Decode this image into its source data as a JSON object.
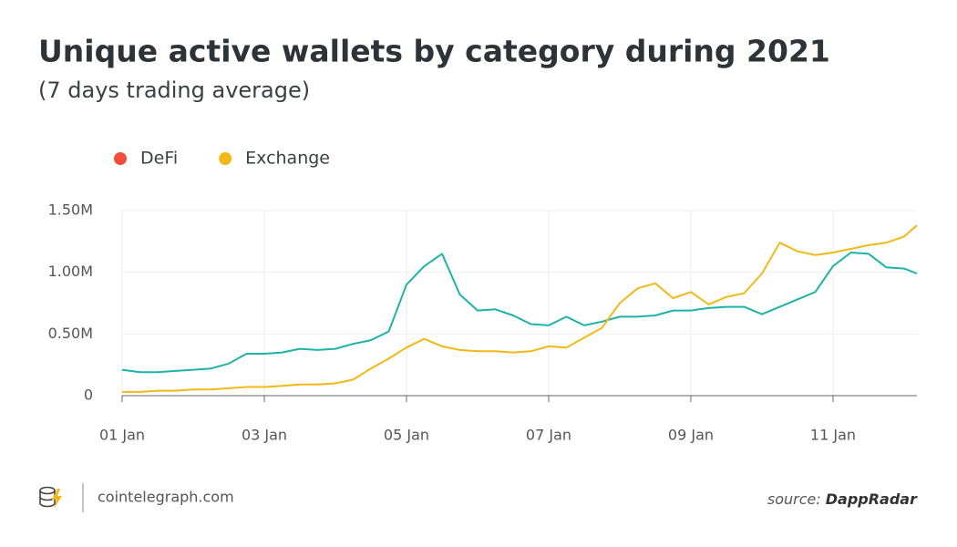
{
  "chart_data": {
    "type": "line",
    "title": "Unique active wallets by category during 2021",
    "subtitle": "(7 days trading average)",
    "x": [
      1,
      1.25,
      1.5,
      1.75,
      2,
      2.25,
      2.5,
      2.75,
      3,
      3.25,
      3.5,
      3.75,
      4,
      4.25,
      4.5,
      4.75,
      5,
      5.25,
      5.5,
      5.75,
      6,
      6.25,
      6.5,
      6.75,
      7,
      7.25,
      7.5,
      7.75,
      8,
      8.25,
      8.5,
      8.75,
      9,
      9.25,
      9.5,
      9.75,
      10,
      10.25,
      10.5,
      10.75,
      11,
      11.25,
      11.5,
      11.75,
      12,
      12.18
    ],
    "series": [
      {
        "name": "DeFi",
        "color": "#1db3a7",
        "legend_color": "#f04e3a",
        "values": [
          210000,
          190000,
          190000,
          200000,
          210000,
          220000,
          260000,
          340000,
          340000,
          350000,
          380000,
          370000,
          380000,
          420000,
          450000,
          520000,
          900000,
          1050000,
          1150000,
          820000,
          690000,
          700000,
          650000,
          580000,
          570000,
          640000,
          570000,
          600000,
          640000,
          640000,
          650000,
          690000,
          690000,
          710000,
          720000,
          720000,
          660000,
          720000,
          780000,
          840000,
          1050000,
          1160000,
          1150000,
          1040000,
          1030000,
          990000
        ]
      },
      {
        "name": "Exchange",
        "color": "#f2b817",
        "legend_color": "#f2b817",
        "values": [
          30000,
          30000,
          40000,
          40000,
          50000,
          50000,
          60000,
          70000,
          70000,
          80000,
          90000,
          90000,
          100000,
          130000,
          220000,
          300000,
          390000,
          460000,
          400000,
          370000,
          360000,
          360000,
          350000,
          360000,
          400000,
          390000,
          470000,
          550000,
          750000,
          870000,
          910000,
          790000,
          840000,
          740000,
          800000,
          830000,
          990000,
          1240000,
          1170000,
          1140000,
          1160000,
          1190000,
          1220000,
          1240000,
          1290000,
          1380000
        ]
      }
    ],
    "xlim": [
      1,
      12.18
    ],
    "xticks": [
      {
        "value": 1,
        "label": "01 Jan"
      },
      {
        "value": 3,
        "label": "03 Jan"
      },
      {
        "value": 5,
        "label": "05 Jan"
      },
      {
        "value": 7,
        "label": "07 Jan"
      },
      {
        "value": 9,
        "label": "09 Jan"
      },
      {
        "value": 11,
        "label": "11 Jan"
      }
    ],
    "ylim": [
      0,
      1500000
    ],
    "yticks": [
      0,
      {
        "value": 500000,
        "label": "0.50M"
      },
      {
        "value": 1000000,
        "label": "1.00M"
      },
      {
        "value": 1500000,
        "label": "1.50M"
      }
    ],
    "grid": true,
    "site": "cointelegraph.com",
    "source_label": "source:",
    "source": "DappRadar"
  }
}
